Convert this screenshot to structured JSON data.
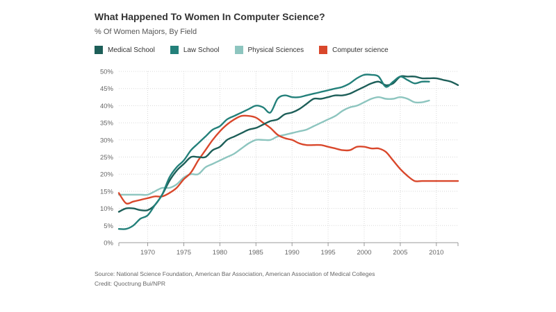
{
  "chart_data": {
    "type": "line",
    "title": "What Happened To Women In Computer Science?",
    "subtitle": "% Of Women Majors, By Field",
    "xlabel": "",
    "ylabel": "",
    "xlim": [
      1966,
      2013
    ],
    "ylim": [
      0,
      50
    ],
    "grid": true,
    "legend_position": "top-left",
    "x_ticks": [
      1970,
      1975,
      1980,
      1985,
      1990,
      1995,
      2000,
      2005,
      2010
    ],
    "x_tick_labels": [
      "1970",
      "1975",
      "1980",
      "1985",
      "1990",
      "1995",
      "2000",
      "2005",
      "2010"
    ],
    "y_ticks": [
      0,
      5,
      10,
      15,
      20,
      25,
      30,
      35,
      40,
      45,
      50
    ],
    "y_tick_labels": [
      "0%",
      "5%",
      "10%",
      "15%",
      "20%",
      "25%",
      "30%",
      "35%",
      "40%",
      "45%",
      "50%"
    ],
    "series": [
      {
        "name": "Medical School",
        "color": "#1d5e58",
        "x": [
          1966,
          1967,
          1968,
          1969,
          1970,
          1971,
          1972,
          1973,
          1974,
          1975,
          1976,
          1977,
          1978,
          1979,
          1980,
          1981,
          1982,
          1983,
          1984,
          1985,
          1986,
          1987,
          1988,
          1989,
          1990,
          1991,
          1992,
          1993,
          1994,
          1995,
          1996,
          1997,
          1998,
          1999,
          2000,
          2001,
          2002,
          2003,
          2004,
          2005,
          2006,
          2007,
          2008,
          2009,
          2010,
          2011,
          2012,
          2013
        ],
        "values": [
          9,
          10,
          10,
          9.5,
          9.5,
          11,
          14,
          18,
          21,
          23,
          25,
          25,
          25,
          27,
          28,
          30,
          31,
          32,
          33,
          33.5,
          34.5,
          35.5,
          36,
          37.5,
          38,
          39,
          40.5,
          42,
          42,
          42.5,
          43,
          43,
          43.5,
          44.5,
          45.5,
          46.5,
          47,
          46,
          46.5,
          48.5,
          48.5,
          48.5,
          48,
          48,
          48,
          47.5,
          47,
          46
        ]
      },
      {
        "name": "Law School",
        "color": "#23807a",
        "x": [
          1966,
          1967,
          1968,
          1969,
          1970,
          1971,
          1972,
          1973,
          1974,
          1975,
          1976,
          1977,
          1978,
          1979,
          1980,
          1981,
          1982,
          1983,
          1984,
          1985,
          1986,
          1987,
          1988,
          1989,
          1990,
          1991,
          1992,
          1993,
          1994,
          1995,
          1996,
          1997,
          1998,
          1999,
          2000,
          2001,
          2002,
          2003,
          2004,
          2005,
          2006,
          2007,
          2008,
          2009
        ],
        "values": [
          4,
          4,
          5,
          7,
          8,
          11,
          14,
          19,
          22,
          24,
          27,
          29,
          31,
          33,
          34,
          36,
          37,
          38,
          39,
          40,
          39.5,
          38,
          42,
          43,
          42.5,
          42.5,
          43,
          43.5,
          44,
          44.5,
          45,
          45.5,
          46.5,
          48,
          49,
          49,
          48.5,
          45.5,
          47,
          48.5,
          47.5,
          46.5,
          47,
          47
        ]
      },
      {
        "name": "Physical Sciences",
        "color": "#8dc5bf",
        "x": [
          1966,
          1967,
          1968,
          1969,
          1970,
          1971,
          1972,
          1973,
          1974,
          1975,
          1976,
          1977,
          1978,
          1979,
          1980,
          1981,
          1982,
          1983,
          1984,
          1985,
          1986,
          1987,
          1988,
          1989,
          1990,
          1991,
          1992,
          1993,
          1994,
          1995,
          1996,
          1997,
          1998,
          1999,
          2000,
          2001,
          2002,
          2003,
          2004,
          2005,
          2006,
          2007,
          2008,
          2009
        ],
        "values": [
          14,
          14,
          14,
          14,
          14,
          15,
          16,
          16,
          17,
          19,
          20,
          20,
          22,
          23,
          24,
          25,
          26,
          27.5,
          29,
          30,
          30,
          30,
          31,
          31.5,
          32,
          32.5,
          33,
          34,
          35,
          36,
          37,
          38.5,
          39.5,
          40,
          41,
          42,
          42.5,
          42,
          42,
          42.5,
          42,
          41,
          41,
          41.5
        ]
      },
      {
        "name": "Computer science",
        "color": "#d9472b",
        "x": [
          1966,
          1967,
          1968,
          1969,
          1970,
          1971,
          1972,
          1973,
          1974,
          1975,
          1976,
          1977,
          1978,
          1979,
          1980,
          1981,
          1982,
          1983,
          1984,
          1985,
          1986,
          1987,
          1988,
          1989,
          1990,
          1991,
          1992,
          1993,
          1994,
          1995,
          1996,
          1997,
          1998,
          1999,
          2000,
          2001,
          2002,
          2003,
          2004,
          2005,
          2006,
          2007,
          2008,
          2009,
          2010,
          2011,
          2012,
          2013
        ],
        "values": [
          14.5,
          11.5,
          12,
          12.5,
          13,
          13.5,
          13.5,
          14.5,
          16,
          18.5,
          20.5,
          24,
          27,
          30,
          32.5,
          34.5,
          36,
          37,
          37,
          36.5,
          35,
          33.5,
          31.5,
          30.5,
          30,
          29,
          28.5,
          28.5,
          28.5,
          28,
          27.5,
          27,
          27,
          28,
          28,
          27.5,
          27.5,
          26.5,
          24,
          21.5,
          19.5,
          18,
          18,
          18,
          18,
          18,
          18,
          18
        ]
      }
    ]
  },
  "footer": {
    "source": "Source: National Science Foundation, American Bar Association, American Association of Medical Colleges",
    "credit": "Credit: Quoctrung Bui/NPR"
  }
}
